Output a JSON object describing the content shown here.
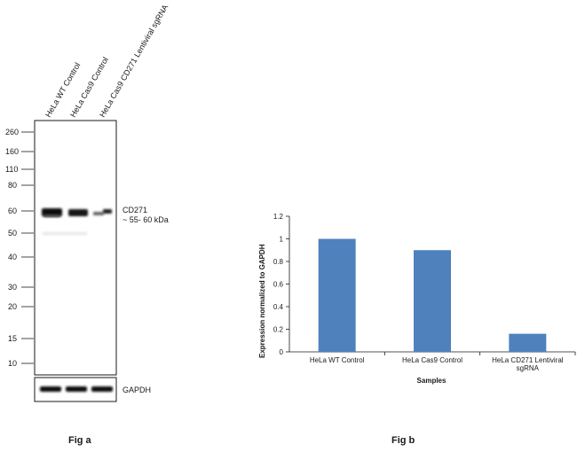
{
  "blot": {
    "lane_labels": [
      "HeLa WT Control",
      "HeLa Cas9 Control",
      "HeLa Cas9 CD271 Lentiviral sgRNA"
    ],
    "mw_markers": [
      "260",
      "160",
      "110",
      "80",
      "60",
      "50",
      "40",
      "30",
      "20",
      "15",
      "10"
    ],
    "target_label": "CD271",
    "target_size": "~ 55- 60 kDa",
    "loading_label": "GAPDH",
    "caption": "Fig a"
  },
  "chart_data": {
    "type": "bar",
    "title": "",
    "categories": [
      "HeLa WT Control",
      "HeLa Cas9 Control",
      "HeLa CD271 Lentiviral sgRNA"
    ],
    "category_lines": [
      [
        "HeLa WT Control"
      ],
      [
        "HeLa Cas9 Control"
      ],
      [
        "HeLa CD271 Lentiviral",
        "sgRNA"
      ]
    ],
    "values": [
      1.0,
      0.9,
      0.16
    ],
    "xlabel": "Samples",
    "ylabel": "Expression  normalized to GAPDH",
    "ylim": [
      0,
      1.2
    ],
    "yticks": [
      0,
      0.2,
      0.4,
      0.6,
      0.8,
      1,
      1.2
    ],
    "ytick_labels": [
      "0",
      "0.2",
      "0.4",
      "0.6",
      "0.8",
      "1",
      "1.2"
    ],
    "bar_color": "#4f81bd",
    "caption": "Fig b"
  }
}
